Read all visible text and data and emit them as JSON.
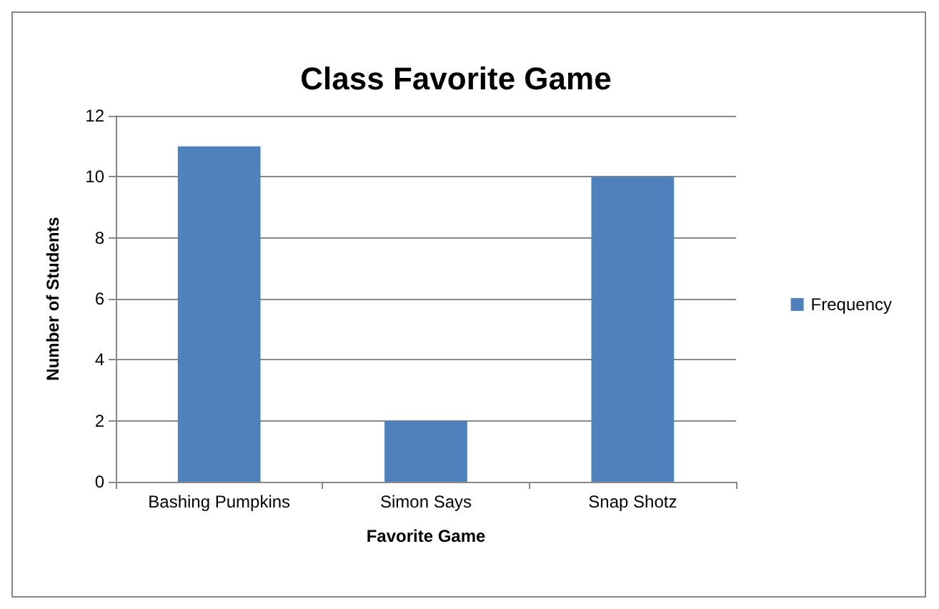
{
  "chart_data": {
    "type": "bar",
    "title": "Class Favorite Game",
    "xlabel": "Favorite Game",
    "ylabel": "Number of Students",
    "categories": [
      "Bashing Pumpkins",
      "Simon Says",
      "Snap Shotz"
    ],
    "series": [
      {
        "name": "Frequency",
        "color": "#4f81bd",
        "values": [
          11,
          2,
          10
        ]
      }
    ],
    "ylim": [
      0,
      12
    ],
    "yticks": [
      0,
      2,
      4,
      6,
      8,
      10,
      12
    ],
    "grid": "y",
    "legend": "right"
  }
}
